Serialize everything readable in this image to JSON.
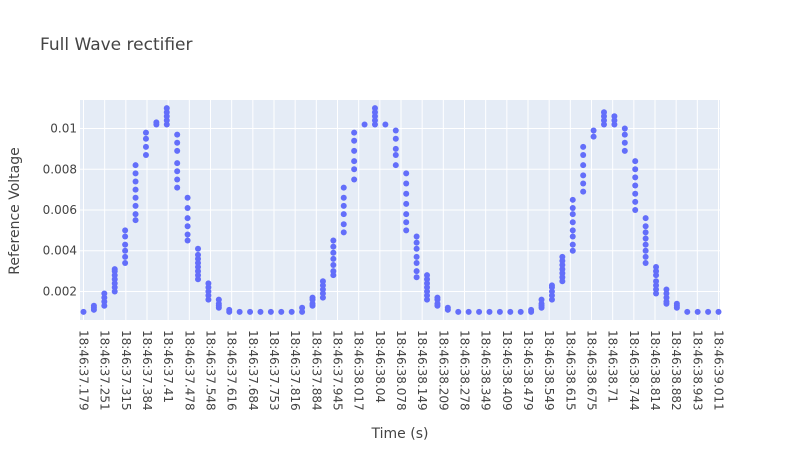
{
  "chart_data": {
    "type": "scatter",
    "title": "Full Wave rectifier",
    "xlabel": "Time (s)",
    "ylabel": "Reference Voltage",
    "x_tick_labels": [
      "18:46:37.179",
      "18:46:37.251",
      "18:46:37.315",
      "18:46:37.384",
      "18:46:37.41",
      "18:46:37.478",
      "18:46:37.548",
      "18:46:37.616",
      "18:46:37.684",
      "18:46:37.753",
      "18:46:37.816",
      "18:46:37.884",
      "18:46:37.945",
      "18:46:38.017",
      "18:46:38.04",
      "18:46:38.078",
      "18:46:38.149",
      "18:46:38.209",
      "18:46:38.278",
      "18:46:38.349",
      "18:46:38.409",
      "18:46:38.479",
      "18:46:38.549",
      "18:46:38.615",
      "18:46:38.675",
      "18:46:38.71",
      "18:46:38.744",
      "18:46:38.814",
      "18:46:38.882",
      "18:46:38.943",
      "18:46:39.011"
    ],
    "y_ticks": [
      0.002,
      0.004,
      0.006,
      0.008,
      0.01
    ],
    "y_tick_labels": [
      "0.002",
      "0.004",
      "0.006",
      "0.008",
      "0.01"
    ],
    "ylim": [
      0.0006,
      0.0114
    ],
    "grid": true,
    "marker_color": "#636efa",
    "plot_background": "#e5ecf6",
    "series": [
      {
        "points": [
          [
            0,
            0.001
          ],
          [
            1,
            0.0011
          ],
          [
            1,
            0.0012
          ],
          [
            1,
            0.0013
          ],
          [
            2,
            0.0013
          ],
          [
            2,
            0.0015
          ],
          [
            2,
            0.0017
          ],
          [
            2,
            0.0019
          ],
          [
            3,
            0.002
          ],
          [
            3,
            0.0022
          ],
          [
            3,
            0.0024
          ],
          [
            3,
            0.0026
          ],
          [
            3,
            0.0028
          ],
          [
            3,
            0.003
          ],
          [
            3,
            0.0031
          ],
          [
            4,
            0.0034
          ],
          [
            4,
            0.0037
          ],
          [
            4,
            0.004
          ],
          [
            4,
            0.0043
          ],
          [
            4,
            0.0047
          ],
          [
            4,
            0.005
          ],
          [
            5,
            0.0055
          ],
          [
            5,
            0.0058
          ],
          [
            5,
            0.0062
          ],
          [
            5,
            0.0066
          ],
          [
            5,
            0.007
          ],
          [
            5,
            0.0074
          ],
          [
            5,
            0.0078
          ],
          [
            5,
            0.0082
          ],
          [
            6,
            0.0087
          ],
          [
            6,
            0.0091
          ],
          [
            6,
            0.0095
          ],
          [
            6,
            0.0098
          ],
          [
            7,
            0.0102
          ],
          [
            7,
            0.0103
          ],
          [
            8,
            0.0102
          ],
          [
            8,
            0.0104
          ],
          [
            8,
            0.0106
          ],
          [
            8,
            0.0108
          ],
          [
            8,
            0.011
          ],
          [
            9,
            0.0071
          ],
          [
            9,
            0.0075
          ],
          [
            9,
            0.0079
          ],
          [
            9,
            0.0083
          ],
          [
            9,
            0.0089
          ],
          [
            9,
            0.0093
          ],
          [
            9,
            0.0097
          ],
          [
            10,
            0.0045
          ],
          [
            10,
            0.0048
          ],
          [
            10,
            0.0052
          ],
          [
            10,
            0.0056
          ],
          [
            10,
            0.0061
          ],
          [
            10,
            0.0066
          ],
          [
            11,
            0.0026
          ],
          [
            11,
            0.0028
          ],
          [
            11,
            0.003
          ],
          [
            11,
            0.0032
          ],
          [
            11,
            0.0034
          ],
          [
            11,
            0.0036
          ],
          [
            11,
            0.0038
          ],
          [
            11,
            0.0041
          ],
          [
            12,
            0.0016
          ],
          [
            12,
            0.0018
          ],
          [
            12,
            0.002
          ],
          [
            12,
            0.0022
          ],
          [
            12,
            0.0024
          ],
          [
            13,
            0.0012
          ],
          [
            13,
            0.0013
          ],
          [
            13,
            0.0014
          ],
          [
            13,
            0.0016
          ],
          [
            14,
            0.001
          ],
          [
            14,
            0.0011
          ],
          [
            15,
            0.001
          ],
          [
            16,
            0.001
          ],
          [
            17,
            0.001
          ],
          [
            18,
            0.001
          ],
          [
            19,
            0.001
          ],
          [
            20,
            0.001
          ],
          [
            21,
            0.001
          ],
          [
            21,
            0.0012
          ],
          [
            22,
            0.0013
          ],
          [
            22,
            0.0014
          ],
          [
            22,
            0.0016
          ],
          [
            22,
            0.0017
          ],
          [
            23,
            0.0017
          ],
          [
            23,
            0.0019
          ],
          [
            23,
            0.0021
          ],
          [
            23,
            0.0023
          ],
          [
            23,
            0.0025
          ],
          [
            24,
            0.0028
          ],
          [
            24,
            0.003
          ],
          [
            24,
            0.0033
          ],
          [
            24,
            0.0036
          ],
          [
            24,
            0.0039
          ],
          [
            24,
            0.0042
          ],
          [
            24,
            0.0045
          ],
          [
            25,
            0.0049
          ],
          [
            25,
            0.0053
          ],
          [
            25,
            0.0058
          ],
          [
            25,
            0.0062
          ],
          [
            25,
            0.0066
          ],
          [
            25,
            0.0071
          ],
          [
            26,
            0.0075
          ],
          [
            26,
            0.008
          ],
          [
            26,
            0.0084
          ],
          [
            26,
            0.0089
          ],
          [
            26,
            0.0094
          ],
          [
            26,
            0.0098
          ],
          [
            27,
            0.0102
          ],
          [
            28,
            0.0102
          ],
          [
            28,
            0.0104
          ],
          [
            28,
            0.0106
          ],
          [
            28,
            0.0108
          ],
          [
            28,
            0.011
          ],
          [
            29,
            0.0102
          ],
          [
            30,
            0.0082
          ],
          [
            30,
            0.0087
          ],
          [
            30,
            0.009
          ],
          [
            30,
            0.0095
          ],
          [
            30,
            0.0099
          ],
          [
            31,
            0.005
          ],
          [
            31,
            0.0054
          ],
          [
            31,
            0.0058
          ],
          [
            31,
            0.0063
          ],
          [
            31,
            0.0068
          ],
          [
            31,
            0.0073
          ],
          [
            31,
            0.0078
          ],
          [
            32,
            0.0027
          ],
          [
            32,
            0.003
          ],
          [
            32,
            0.0034
          ],
          [
            32,
            0.0037
          ],
          [
            32,
            0.0041
          ],
          [
            32,
            0.0044
          ],
          [
            32,
            0.0047
          ],
          [
            33,
            0.0016
          ],
          [
            33,
            0.0018
          ],
          [
            33,
            0.002
          ],
          [
            33,
            0.0022
          ],
          [
            33,
            0.0024
          ],
          [
            33,
            0.0026
          ],
          [
            33,
            0.0028
          ],
          [
            34,
            0.0013
          ],
          [
            34,
            0.0014
          ],
          [
            34,
            0.0016
          ],
          [
            34,
            0.0017
          ],
          [
            35,
            0.0011
          ],
          [
            35,
            0.0012
          ],
          [
            36,
            0.001
          ],
          [
            37,
            0.001
          ],
          [
            38,
            0.001
          ],
          [
            39,
            0.001
          ],
          [
            40,
            0.001
          ],
          [
            41,
            0.001
          ],
          [
            42,
            0.001
          ],
          [
            43,
            0.001
          ],
          [
            43,
            0.0011
          ],
          [
            44,
            0.0012
          ],
          [
            44,
            0.0013
          ],
          [
            44,
            0.0014
          ],
          [
            44,
            0.0016
          ],
          [
            45,
            0.0016
          ],
          [
            45,
            0.0018
          ],
          [
            45,
            0.002
          ],
          [
            45,
            0.0022
          ],
          [
            45,
            0.0023
          ],
          [
            46,
            0.0025
          ],
          [
            46,
            0.0027
          ],
          [
            46,
            0.0029
          ],
          [
            46,
            0.0031
          ],
          [
            46,
            0.0033
          ],
          [
            46,
            0.0035
          ],
          [
            46,
            0.0037
          ],
          [
            47,
            0.004
          ],
          [
            47,
            0.0043
          ],
          [
            47,
            0.0047
          ],
          [
            47,
            0.005
          ],
          [
            47,
            0.0054
          ],
          [
            47,
            0.0058
          ],
          [
            47,
            0.0061
          ],
          [
            47,
            0.0065
          ],
          [
            48,
            0.0069
          ],
          [
            48,
            0.0073
          ],
          [
            48,
            0.0077
          ],
          [
            48,
            0.0082
          ],
          [
            48,
            0.0087
          ],
          [
            48,
            0.0091
          ],
          [
            49,
            0.0096
          ],
          [
            49,
            0.0099
          ],
          [
            50,
            0.0102
          ],
          [
            50,
            0.0104
          ],
          [
            50,
            0.0106
          ],
          [
            50,
            0.0108
          ],
          [
            51,
            0.0102
          ],
          [
            51,
            0.0104
          ],
          [
            51,
            0.0106
          ],
          [
            52,
            0.0089
          ],
          [
            52,
            0.0093
          ],
          [
            52,
            0.0097
          ],
          [
            52,
            0.01
          ],
          [
            53,
            0.006
          ],
          [
            53,
            0.0064
          ],
          [
            53,
            0.0068
          ],
          [
            53,
            0.0072
          ],
          [
            53,
            0.0076
          ],
          [
            53,
            0.008
          ],
          [
            53,
            0.0084
          ],
          [
            54,
            0.0034
          ],
          [
            54,
            0.0037
          ],
          [
            54,
            0.004
          ],
          [
            54,
            0.0043
          ],
          [
            54,
            0.0046
          ],
          [
            54,
            0.0049
          ],
          [
            54,
            0.0052
          ],
          [
            54,
            0.0056
          ],
          [
            55,
            0.0019
          ],
          [
            55,
            0.0021
          ],
          [
            55,
            0.0023
          ],
          [
            55,
            0.0025
          ],
          [
            55,
            0.0028
          ],
          [
            55,
            0.003
          ],
          [
            55,
            0.0032
          ],
          [
            56,
            0.0014
          ],
          [
            56,
            0.0015
          ],
          [
            56,
            0.0017
          ],
          [
            56,
            0.0019
          ],
          [
            56,
            0.0021
          ],
          [
            57,
            0.0012
          ],
          [
            57,
            0.0013
          ],
          [
            57,
            0.0014
          ],
          [
            58,
            0.001
          ],
          [
            59,
            0.001
          ],
          [
            60,
            0.001
          ],
          [
            61,
            0.001
          ]
        ]
      }
    ]
  }
}
